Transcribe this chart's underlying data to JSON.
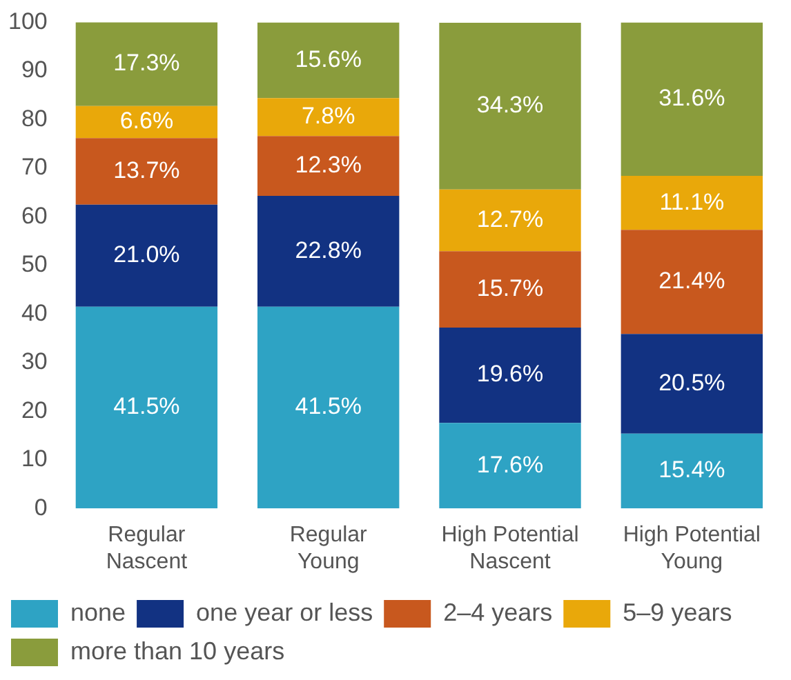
{
  "chart_data": {
    "type": "bar",
    "stacked": true,
    "categories": [
      "Regular Nascent",
      "Regular Young",
      "High Potential Nascent",
      "High Potential Young"
    ],
    "series": [
      {
        "name": "none",
        "color": "#2ea3c4",
        "values": [
          41.5,
          41.5,
          17.6,
          15.4
        ],
        "value_labels": [
          "41.5%",
          "41.5%",
          "17.6%",
          "15.4%"
        ]
      },
      {
        "name": "one year or less",
        "color": "#123282",
        "values": [
          21.0,
          22.8,
          19.6,
          20.5
        ],
        "value_labels": [
          "21.0%",
          "22.8%",
          "19.6%",
          "20.5%"
        ]
      },
      {
        "name": "2–4 years",
        "color": "#c8581e",
        "values": [
          13.7,
          12.3,
          15.7,
          21.4
        ],
        "value_labels": [
          "13.7%",
          "12.3%",
          "15.7%",
          "21.4%"
        ]
      },
      {
        "name": "5–9 years",
        "color": "#e9a80a",
        "values": [
          6.6,
          7.8,
          12.7,
          11.1
        ],
        "value_labels": [
          "6.6%",
          "7.8%",
          "12.7%",
          "11.1%"
        ]
      },
      {
        "name": "more than 10 years",
        "color": "#8a9c3c",
        "values": [
          17.3,
          15.6,
          34.3,
          31.6
        ],
        "value_labels": [
          "17.3%",
          "15.6%",
          "34.3%",
          "31.6%"
        ]
      }
    ],
    "ylim": [
      0,
      100
    ],
    "yticks": [
      0,
      10,
      20,
      30,
      40,
      50,
      60,
      70,
      80,
      90,
      100
    ],
    "grid": false,
    "legend": "bottom"
  }
}
